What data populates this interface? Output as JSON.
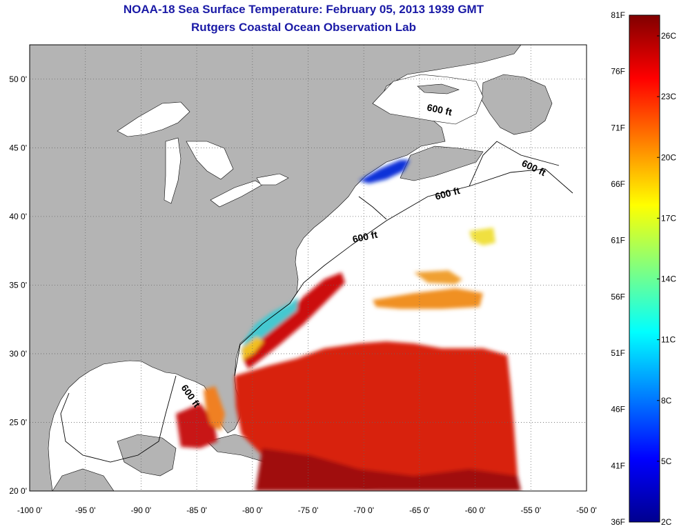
{
  "title": "NOAA-18 Sea Surface Temperature:  February 05, 2013 1939 GMT",
  "subtitle": "Rutgers Coastal Ocean Observation Lab",
  "map": {
    "lon_range": [
      -100,
      -50
    ],
    "lat_range": [
      20,
      52.5
    ],
    "lon_ticks": [
      "-100 0'",
      "-95 0'",
      "-90 0'",
      "-85 0'",
      "-80 0'",
      "-75 0'",
      "-70 0'",
      "-65 0'",
      "-60 0'",
      "-55 0'",
      "-50 0'"
    ],
    "lat_ticks": [
      "20 0'",
      "25 0'",
      "30 0'",
      "35 0'",
      "40 0'",
      "45 0'",
      "50 0'"
    ],
    "grid": "dotted",
    "land_color": "#b4b4b4",
    "no_data_color": "#ffffff",
    "contour_labels": [
      "600 ft",
      "600 ft",
      "600 ft",
      "600 ft",
      "600 ft"
    ]
  },
  "colorbar": {
    "fahrenheit_labels": [
      "81F",
      "76F",
      "71F",
      "66F",
      "61F",
      "56F",
      "51F",
      "46F",
      "41F",
      "36F"
    ],
    "celsius_labels": [
      "26C",
      "23C",
      "20C",
      "17C",
      "14C",
      "11C",
      "8C",
      "5C",
      "2C"
    ],
    "colors": [
      "#00008f",
      "#0000ff",
      "#0080ff",
      "#00ffff",
      "#80ff80",
      "#ffff00",
      "#ff8000",
      "#ff0000",
      "#800000"
    ]
  }
}
